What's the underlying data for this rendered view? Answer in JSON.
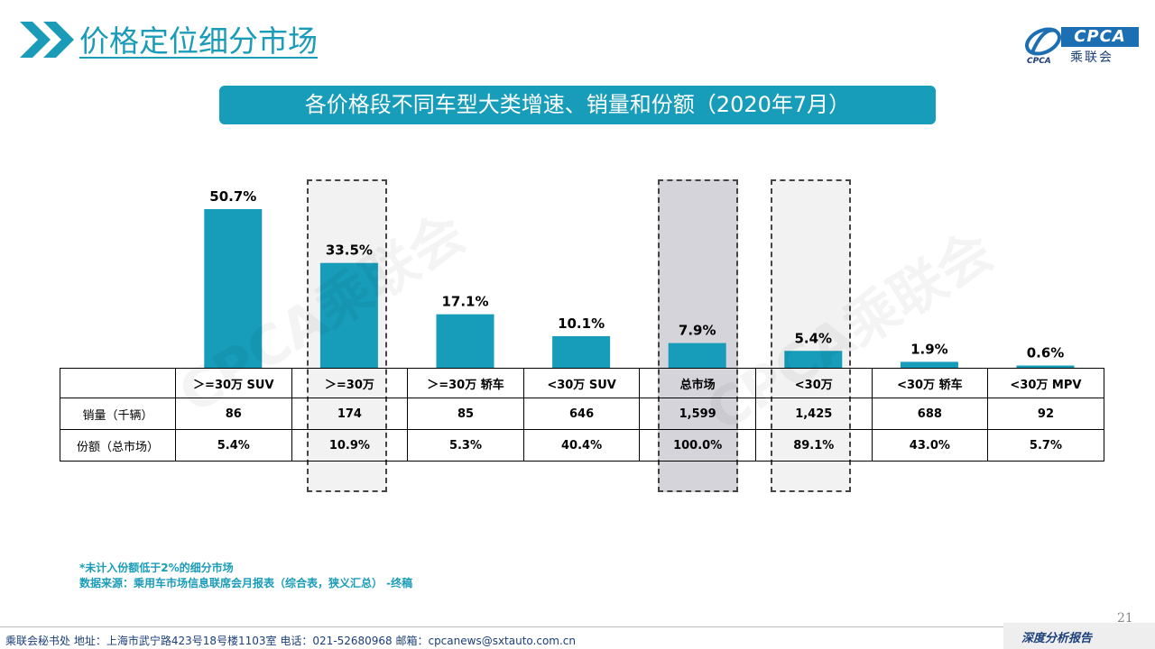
{
  "page": {
    "title": "价格定位细分市场",
    "banner": "各价格段不同车型大类增速、销量和份额（2020年7月）",
    "logo_text": "CPCA",
    "logo_sub": "乘联会",
    "logo_small": "CPCA",
    "watermark": "CPCA乘联会",
    "footnote_1": "*未计入份额低于2%的细分市场",
    "footnote_2": "数据来源：乘用车市场信息联席会月报表（综合表，狭义汇总） -终稿",
    "page_number": "21",
    "footer_left": "乘联会秘书处   地址：上海市武宁路423号18号楼1103室  电话：021-52680968   邮箱：cpcanews@sxtauto.com.cn",
    "footer_right": "深度分析报告",
    "colors": {
      "accent": "#179cb9",
      "bar": "#179cb9",
      "highlight_dark": "#d4d4da",
      "highlight_light": "#f2f2f2"
    }
  },
  "chart_data": {
    "type": "bar",
    "categories": [
      "＞=30万 SUV",
      "＞=30万",
      "＞=30万 轿车",
      "<30万 SUV",
      "总市场",
      "<30万",
      "<30万 轿车",
      "<30万 MPV"
    ],
    "values": [
      50.7,
      33.5,
      17.1,
      10.1,
      7.9,
      5.4,
      1.9,
      0.6
    ],
    "data_labels": [
      "50.7%",
      "33.5%",
      "17.1%",
      "10.1%",
      "7.9%",
      "5.4%",
      "1.9%",
      "0.6%"
    ],
    "ylim": [
      0,
      55
    ],
    "grid": false,
    "highlighted_categories": [
      "＞=30万",
      "总市场",
      "<30万"
    ],
    "table": {
      "rows": [
        {
          "label": "销量（千辆）",
          "values": [
            "86",
            "174",
            "85",
            "646",
            "1,599",
            "1,425",
            "688",
            "92"
          ]
        },
        {
          "label": "份额（总市场）",
          "values": [
            "5.4%",
            "10.9%",
            "5.3%",
            "40.4%",
            "100.0%",
            "89.1%",
            "43.0%",
            "5.7%"
          ]
        }
      ]
    }
  }
}
